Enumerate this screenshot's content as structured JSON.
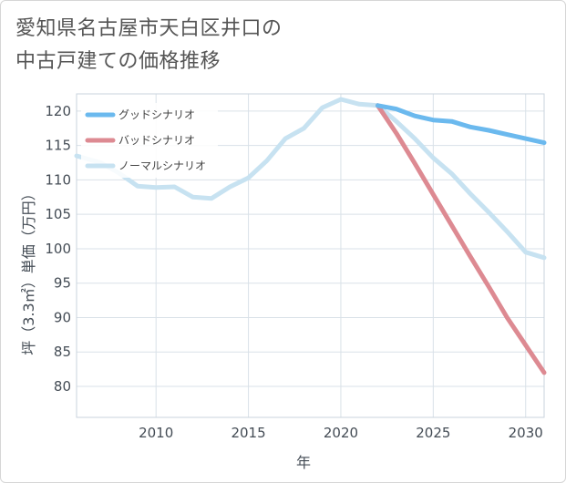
{
  "title_line1": "愛知県名古屋市天白区井口の",
  "title_line2": "中古戸建ての価格推移",
  "chart_data": {
    "type": "line",
    "xlabel": "年",
    "ylabel": "坪（3.3㎡）単価（万円）",
    "xlim": [
      2005.7,
      2031
    ],
    "ylim": [
      75.5,
      122.5
    ],
    "x_ticks": [
      2010,
      2015,
      2020,
      2025,
      2030
    ],
    "y_ticks": [
      80,
      85,
      90,
      95,
      100,
      105,
      110,
      115,
      120
    ],
    "grid": true,
    "legend_position": "top-left",
    "series": [
      {
        "name": "グッドシナリオ",
        "color": "#6bb9ee",
        "x": [
          2022,
          2023,
          2024,
          2025,
          2026,
          2027,
          2028,
          2029,
          2030,
          2031
        ],
        "y": [
          120.8,
          120.3,
          119.3,
          118.7,
          118.5,
          117.7,
          117.2,
          116.6,
          116.0,
          115.4
        ]
      },
      {
        "name": "バッドシナリオ",
        "color": "#dd8a92",
        "x": [
          2022,
          2023,
          2024,
          2025,
          2026,
          2027,
          2028,
          2029,
          2030,
          2031
        ],
        "y": [
          120.8,
          116.8,
          112.4,
          107.9,
          103.4,
          98.9,
          94.5,
          90.0,
          86.0,
          82.0
        ]
      },
      {
        "name": "ノーマルシナリオ",
        "color": "#c7e2f1",
        "x": [
          2005.7,
          2007,
          2008,
          2009,
          2010,
          2011,
          2012,
          2013,
          2014,
          2015,
          2016,
          2017,
          2018,
          2019,
          2020,
          2021,
          2022,
          2023,
          2024,
          2025,
          2026,
          2027,
          2028,
          2029,
          2030,
          2031
        ],
        "y": [
          113.5,
          112.5,
          111.0,
          109.1,
          108.9,
          109.0,
          107.5,
          107.3,
          109.0,
          110.3,
          112.8,
          116.0,
          117.5,
          120.5,
          121.7,
          121.0,
          120.8,
          118.5,
          116.0,
          113.2,
          110.9,
          108.0,
          105.3,
          102.5,
          99.5,
          98.7
        ]
      }
    ]
  }
}
